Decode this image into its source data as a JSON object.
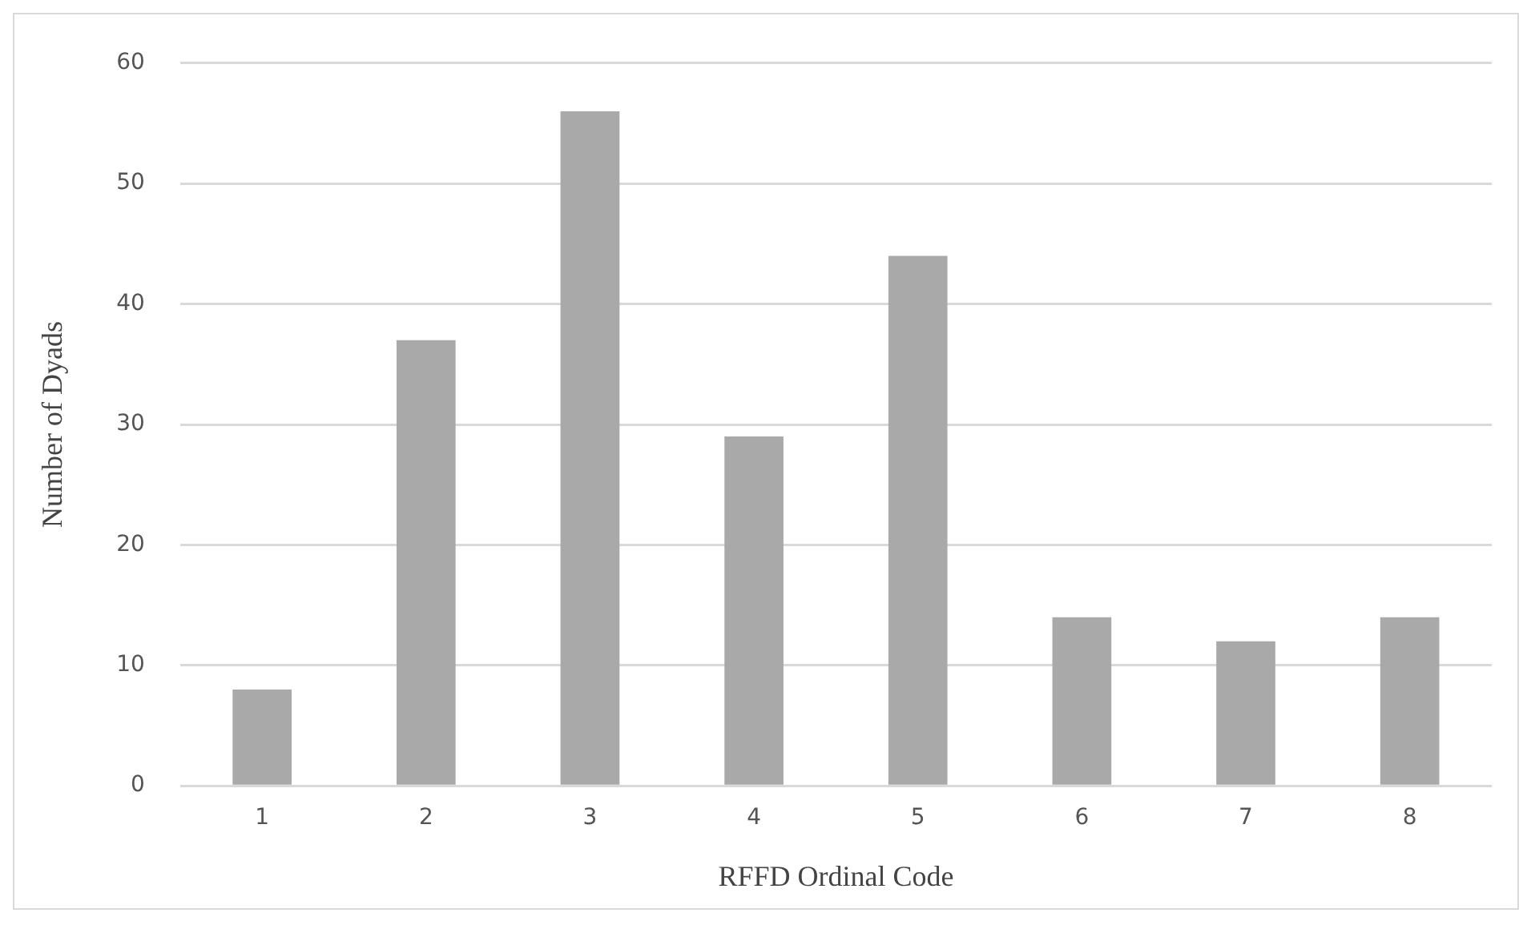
{
  "chart_data": {
    "type": "bar",
    "xlabel": "RFFD Ordinal Code",
    "ylabel": "Number of Dyads",
    "categories": [
      "1",
      "2",
      "3",
      "4",
      "5",
      "6",
      "7",
      "8"
    ],
    "values": [
      8,
      37,
      56,
      29,
      44,
      14,
      12,
      14
    ],
    "color": "#a9a9a9",
    "ylim": [
      0,
      60
    ],
    "yticks": [
      0,
      10,
      20,
      30,
      40,
      50,
      60
    ],
    "grid": "y",
    "legend": false
  }
}
